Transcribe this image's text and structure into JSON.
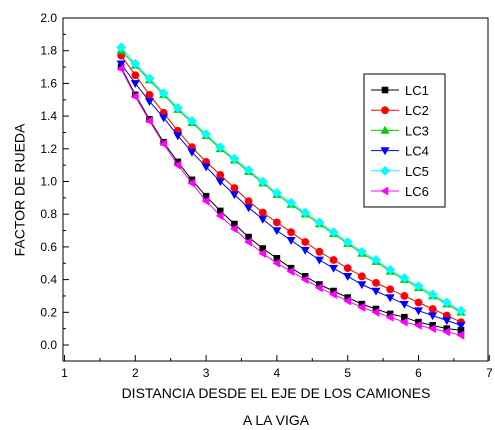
{
  "chart_data": {
    "type": "line",
    "xlabel_line1": "DISTANCIA DESDE EL EJE DE LOS CAMIONES",
    "xlabel_line2": "A LA VIGA",
    "ylabel": "FACTOR DE RUEDA",
    "xlim": [
      1,
      7
    ],
    "ylim": [
      -0.1,
      2.0
    ],
    "xticks": [
      1,
      2,
      3,
      4,
      5,
      6,
      7
    ],
    "yticks": [
      0.0,
      0.2,
      0.4,
      0.6,
      0.8,
      1.0,
      1.2,
      1.4,
      1.6,
      1.8,
      2.0
    ],
    "grid": false,
    "legend_position": "top-right",
    "x": [
      1.8,
      2.0,
      2.2,
      2.4,
      2.6,
      2.8,
      3.0,
      3.2,
      3.4,
      3.6,
      3.8,
      4.0,
      4.2,
      4.4,
      4.6,
      4.8,
      5.0,
      5.2,
      5.4,
      5.6,
      5.8,
      6.0,
      6.2,
      6.4,
      6.6
    ],
    "series": [
      {
        "name": "LC1",
        "color": "#000000",
        "marker": "square",
        "values": [
          1.7,
          1.53,
          1.38,
          1.24,
          1.12,
          1.01,
          0.91,
          0.82,
          0.74,
          0.66,
          0.59,
          0.53,
          0.47,
          0.42,
          0.37,
          0.33,
          0.29,
          0.25,
          0.22,
          0.19,
          0.17,
          0.14,
          0.12,
          0.1,
          0.09
        ]
      },
      {
        "name": "LC2",
        "color": "#ff0000",
        "marker": "circle",
        "values": [
          1.77,
          1.65,
          1.53,
          1.42,
          1.31,
          1.21,
          1.12,
          1.04,
          0.96,
          0.88,
          0.81,
          0.75,
          0.69,
          0.63,
          0.57,
          0.52,
          0.47,
          0.42,
          0.38,
          0.34,
          0.3,
          0.26,
          0.22,
          0.18,
          0.14
        ]
      },
      {
        "name": "LC3",
        "color": "#00cc00",
        "marker": "triangle-up",
        "values": [
          1.8,
          1.71,
          1.62,
          1.53,
          1.44,
          1.36,
          1.28,
          1.2,
          1.13,
          1.06,
          0.99,
          0.92,
          0.86,
          0.8,
          0.74,
          0.68,
          0.62,
          0.56,
          0.51,
          0.45,
          0.4,
          0.35,
          0.3,
          0.25,
          0.2
        ]
      },
      {
        "name": "LC4",
        "color": "#0000ff",
        "marker": "triangle-down",
        "values": [
          1.72,
          1.6,
          1.49,
          1.39,
          1.28,
          1.18,
          1.09,
          1.0,
          0.92,
          0.84,
          0.77,
          0.7,
          0.64,
          0.58,
          0.52,
          0.47,
          0.42,
          0.37,
          0.33,
          0.29,
          0.25,
          0.21,
          0.18,
          0.15,
          0.12
        ]
      },
      {
        "name": "LC5",
        "color": "#00ffff",
        "marker": "diamond",
        "values": [
          1.82,
          1.72,
          1.63,
          1.54,
          1.45,
          1.37,
          1.29,
          1.21,
          1.14,
          1.07,
          1.0,
          0.93,
          0.87,
          0.81,
          0.75,
          0.69,
          0.63,
          0.57,
          0.52,
          0.46,
          0.41,
          0.36,
          0.31,
          0.26,
          0.21
        ]
      },
      {
        "name": "LC6",
        "color": "#ff00ff",
        "marker": "triangle-left",
        "values": [
          1.69,
          1.52,
          1.37,
          1.23,
          1.1,
          0.99,
          0.88,
          0.79,
          0.71,
          0.63,
          0.56,
          0.5,
          0.45,
          0.4,
          0.35,
          0.31,
          0.27,
          0.23,
          0.2,
          0.17,
          0.14,
          0.12,
          0.1,
          0.08,
          0.06
        ]
      }
    ]
  }
}
